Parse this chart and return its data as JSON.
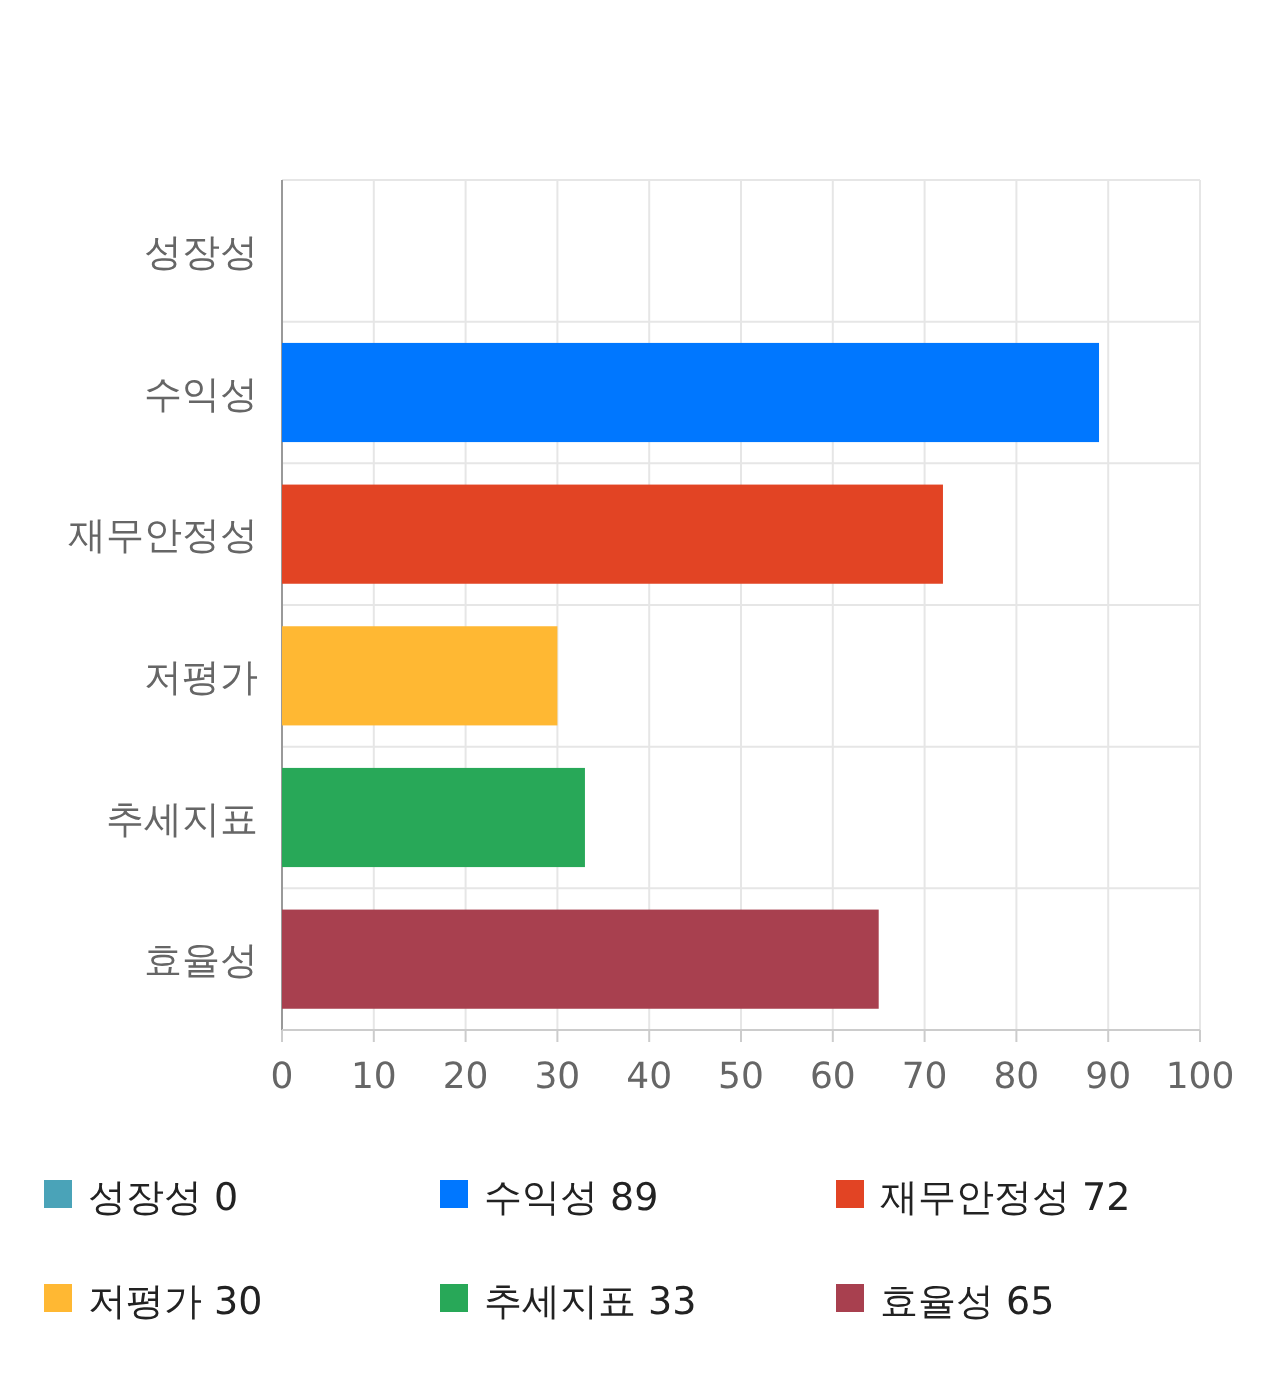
{
  "chart_data": {
    "type": "bar",
    "orientation": "horizontal",
    "categories": [
      "성장성",
      "수익성",
      "재무안정성",
      "저평가",
      "추세지표",
      "효율성"
    ],
    "series": [
      {
        "name": "성장성 0",
        "color": "#4aa3b8",
        "values": [
          0,
          null,
          null,
          null,
          null,
          null
        ]
      },
      {
        "name": "수익성 89",
        "color": "#0077ff",
        "values": [
          null,
          89,
          null,
          null,
          null,
          null
        ]
      },
      {
        "name": "재무안정성 72",
        "color": "#e24424",
        "values": [
          null,
          null,
          72,
          null,
          null,
          null
        ]
      },
      {
        "name": "저평가 30",
        "color": "#ffb833",
        "values": [
          null,
          null,
          null,
          30,
          null,
          null
        ]
      },
      {
        "name": "추세지표 33",
        "color": "#28a858",
        "values": [
          null,
          null,
          null,
          null,
          33,
          null
        ]
      },
      {
        "name": "효율성 65",
        "color": "#a8404f",
        "values": [
          null,
          null,
          null,
          null,
          null,
          65
        ]
      }
    ],
    "xlim": [
      0,
      100
    ],
    "xticks": [
      0,
      10,
      20,
      30,
      40,
      50,
      60,
      70,
      80,
      90,
      100
    ],
    "grid": true,
    "legend": "bottom"
  }
}
